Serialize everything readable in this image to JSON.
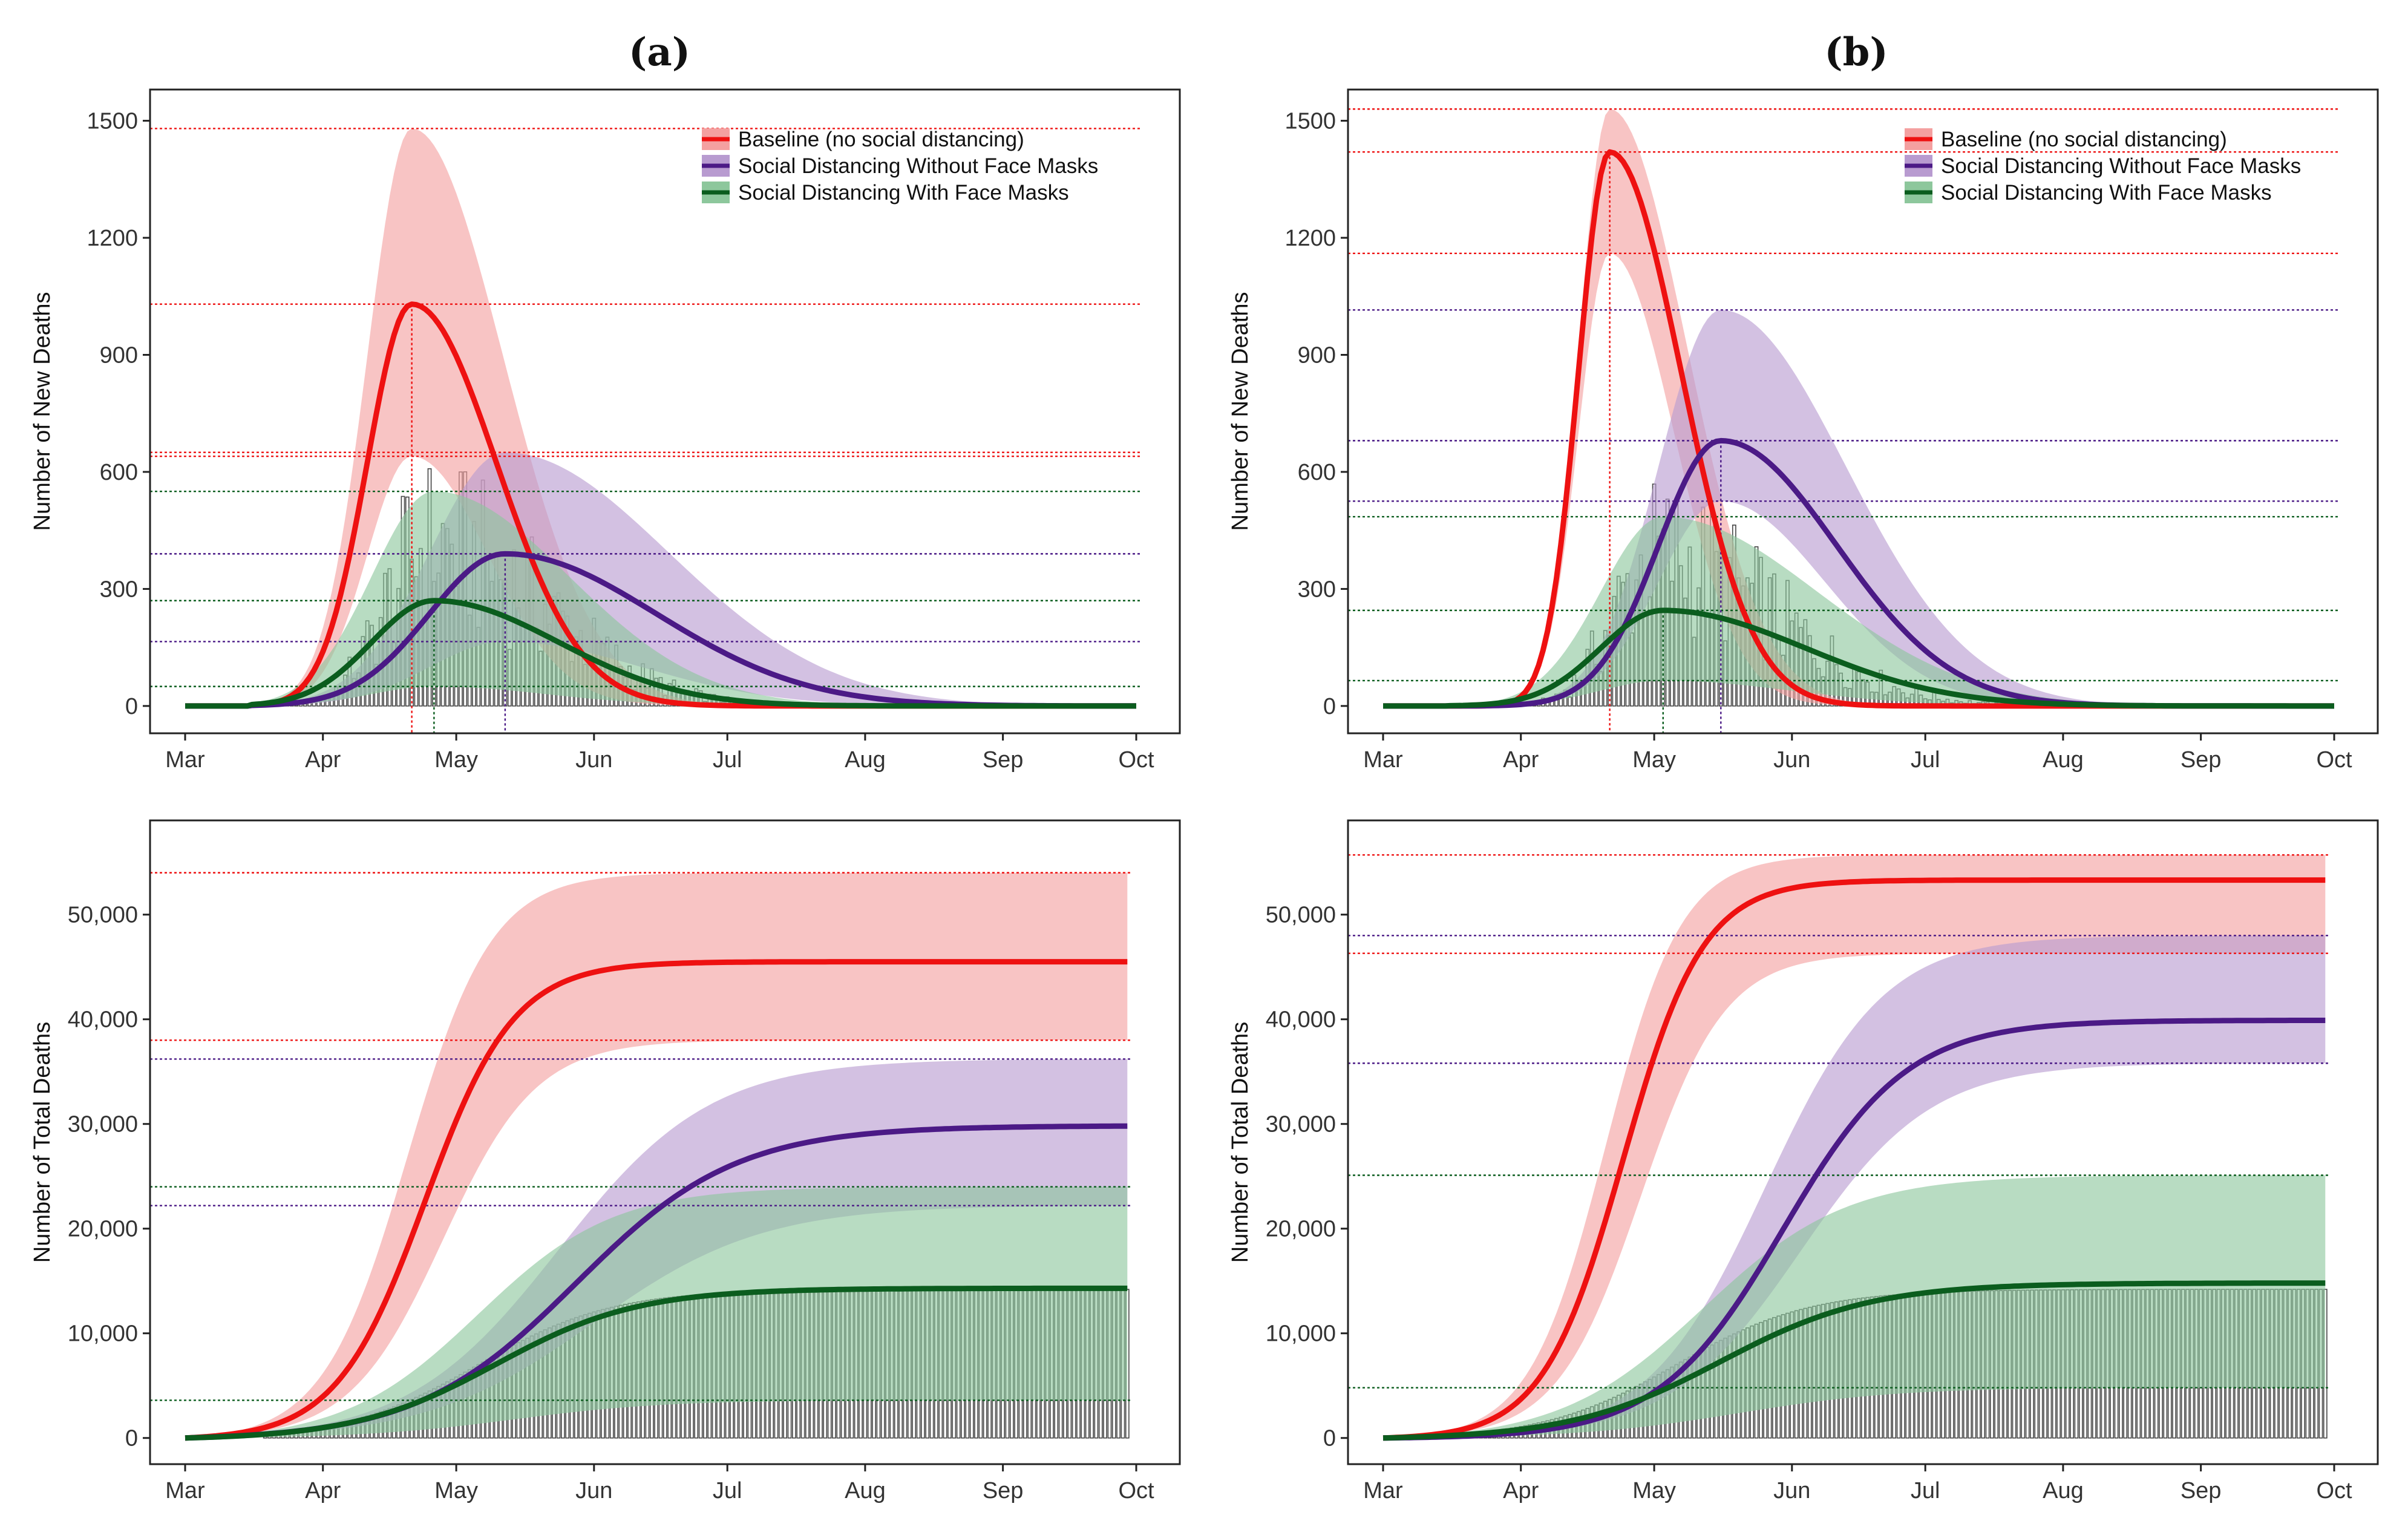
{
  "panel_titles": [
    "(a)",
    "(b)"
  ],
  "colors": {
    "baseline": "#ee1111",
    "baseline_band": "#f4a0a0",
    "no_mask": "#4b1a86",
    "no_mask_band": "#b89bd0",
    "mask": "#0b5d1e",
    "mask_band": "#8dc79c",
    "axis": "#222222",
    "grid_text": "#333333"
  },
  "legend": {
    "baseline": "Baseline (no social distancing)",
    "no_mask": "Social Distancing Without Face Masks",
    "mask": "Social Distancing With Face Masks"
  },
  "chart_data": [
    {
      "id": "a_new",
      "type": "line",
      "title": "(a)",
      "ylabel": "Number of New Deaths",
      "xlabel": "",
      "xlim": [
        0,
        214
      ],
      "ylim": [
        -70,
        1580
      ],
      "x_ticks": [
        {
          "label": "Mar",
          "x": 0
        },
        {
          "label": "Apr",
          "x": 31
        },
        {
          "label": "May",
          "x": 61
        },
        {
          "label": "Jun",
          "x": 92
        },
        {
          "label": "Jul",
          "x": 122
        },
        {
          "label": "Aug",
          "x": 153
        },
        {
          "label": "Sep",
          "x": 184
        },
        {
          "label": "Oct",
          "x": 214
        }
      ],
      "y_ticks": [
        {
          "label": "0",
          "y": 0
        },
        {
          "label": "300",
          "y": 300
        },
        {
          "label": "600",
          "y": 600
        },
        {
          "label": "900",
          "y": 900
        },
        {
          "label": "1200",
          "y": 1200
        },
        {
          "label": "1500",
          "y": 1500
        }
      ],
      "legend": true,
      "bars": "new",
      "bar_peak": 520,
      "series": [
        {
          "key": "baseline",
          "kind": "peak",
          "center": 51,
          "sigma_left": 10,
          "sigma_right": 19,
          "peak": 1030,
          "low_peak": 640,
          "high_peak": 1480,
          "start": 15,
          "end": 214,
          "peak_label": "1030"
        },
        {
          "key": "no_mask",
          "kind": "peak",
          "center": 72,
          "sigma_left": 17,
          "sigma_right": 34,
          "peak": 390,
          "low_peak": 165,
          "high_peak": 650,
          "start": 15,
          "end": 214,
          "peak_label": "390"
        },
        {
          "key": "mask",
          "kind": "peak",
          "center": 56,
          "sigma_left": 14,
          "sigma_right": 28,
          "peak": 270,
          "low_peak": 50,
          "high_peak": 550,
          "start": 15,
          "end": 214,
          "peak_label": "270"
        }
      ],
      "reference_lines": [
        {
          "key": "baseline",
          "y": 1480
        },
        {
          "key": "baseline",
          "y": 1030
        },
        {
          "key": "baseline",
          "y": 650
        },
        {
          "key": "baseline",
          "y": 640
        },
        {
          "key": "no_mask",
          "y": 390
        },
        {
          "key": "no_mask",
          "y": 165
        },
        {
          "key": "mask",
          "y": 550
        },
        {
          "key": "mask",
          "y": 270
        },
        {
          "key": "mask",
          "y": 50
        }
      ],
      "peak_lines": [
        {
          "key": "baseline",
          "x": 51
        },
        {
          "key": "mask",
          "x": 56
        },
        {
          "key": "no_mask",
          "x": 72
        }
      ]
    },
    {
      "id": "b_new",
      "type": "line",
      "title": "(b)",
      "ylabel": "Number of New Deaths",
      "xlabel": "",
      "xlim": [
        0,
        214
      ],
      "ylim": [
        -70,
        1580
      ],
      "x_ticks": [
        {
          "label": "Mar",
          "x": 0
        },
        {
          "label": "Apr",
          "x": 31
        },
        {
          "label": "May",
          "x": 61
        },
        {
          "label": "Jun",
          "x": 92
        },
        {
          "label": "Jul",
          "x": 122
        },
        {
          "label": "Aug",
          "x": 153
        },
        {
          "label": "Sep",
          "x": 184
        },
        {
          "label": "Oct",
          "x": 214
        }
      ],
      "y_ticks": [
        {
          "label": "0",
          "y": 0
        },
        {
          "label": "300",
          "y": 300
        },
        {
          "label": "600",
          "y": 600
        },
        {
          "label": "900",
          "y": 900
        },
        {
          "label": "1200",
          "y": 1200
        },
        {
          "label": "1500",
          "y": 1500
        }
      ],
      "legend": true,
      "bars": "new",
      "bar_peak": 480,
      "series": [
        {
          "key": "baseline",
          "kind": "peak",
          "center": 51,
          "sigma_left": 7,
          "sigma_right": 16,
          "peak": 1420,
          "low_peak": 1160,
          "high_peak": 1530,
          "start": 15,
          "end": 214,
          "peak_label": "1420"
        },
        {
          "key": "no_mask",
          "kind": "peak",
          "center": 76,
          "sigma_left": 14,
          "sigma_right": 26,
          "peak": 680,
          "low_peak": 525,
          "high_peak": 1015,
          "start": 15,
          "end": 214,
          "peak_label": "680"
        },
        {
          "key": "mask",
          "kind": "peak",
          "center": 63,
          "sigma_left": 14,
          "sigma_right": 32,
          "peak": 245,
          "low_peak": 65,
          "high_peak": 485,
          "start": 15,
          "end": 214,
          "peak_label": "245"
        }
      ],
      "reference_lines": [
        {
          "key": "baseline",
          "y": 1530
        },
        {
          "key": "baseline",
          "y": 1420
        },
        {
          "key": "baseline",
          "y": 1160
        },
        {
          "key": "no_mask",
          "y": 1015
        },
        {
          "key": "no_mask",
          "y": 680
        },
        {
          "key": "no_mask",
          "y": 525
        },
        {
          "key": "mask",
          "y": 485
        },
        {
          "key": "mask",
          "y": 245
        },
        {
          "key": "mask",
          "y": 65
        }
      ],
      "peak_lines": [
        {
          "key": "baseline",
          "x": 51
        },
        {
          "key": "mask",
          "x": 63
        },
        {
          "key": "no_mask",
          "x": 76
        }
      ]
    },
    {
      "id": "a_total",
      "type": "line",
      "title": "",
      "ylabel": "Number of Total Deaths",
      "xlabel": "",
      "xlim": [
        0,
        214
      ],
      "ylim": [
        -2500,
        59000
      ],
      "x_ticks": [
        {
          "label": "Mar",
          "x": 0
        },
        {
          "label": "Apr",
          "x": 31
        },
        {
          "label": "May",
          "x": 61
        },
        {
          "label": "Jun",
          "x": 92
        },
        {
          "label": "Jul",
          "x": 122
        },
        {
          "label": "Aug",
          "x": 153
        },
        {
          "label": "Sep",
          "x": 184
        },
        {
          "label": "Oct",
          "x": 214
        }
      ],
      "y_ticks": [
        {
          "label": "0",
          "y": 0
        },
        {
          "label": "10,000",
          "y": 10000
        },
        {
          "label": "20,000",
          "y": 20000
        },
        {
          "label": "30,000",
          "y": 30000
        },
        {
          "label": "40,000",
          "y": 40000
        },
        {
          "label": "50,000",
          "y": 50000
        }
      ],
      "legend": false,
      "bars": "cumulative",
      "bar_final": 14200,
      "series": [
        {
          "key": "baseline",
          "kind": "cumulative",
          "mid": 54,
          "scale": 10,
          "final": 45500,
          "low_final": 38000,
          "high_final": 54000,
          "start": 0,
          "end": 212,
          "final_label": "45,500"
        },
        {
          "key": "no_mask",
          "kind": "cumulative",
          "mid": 88,
          "scale": 18,
          "final": 29800,
          "low_final": 22200,
          "high_final": 36200,
          "start": 0,
          "end": 212,
          "final_label": "29,800"
        },
        {
          "key": "mask",
          "kind": "cumulative",
          "mid": 70,
          "scale": 16,
          "final": 14300,
          "low_final": 3600,
          "high_final": 24000,
          "start": 0,
          "end": 212,
          "final_label": "14,300"
        }
      ],
      "reference_lines": [
        {
          "key": "baseline",
          "y": 54000
        },
        {
          "key": "baseline",
          "y": 38000
        },
        {
          "key": "no_mask",
          "y": 36200
        },
        {
          "key": "no_mask",
          "y": 22200
        },
        {
          "key": "mask",
          "y": 24000
        },
        {
          "key": "mask",
          "y": 3600
        }
      ],
      "peak_lines": []
    },
    {
      "id": "b_total",
      "type": "line",
      "title": "",
      "ylabel": "Number of Total Deaths",
      "xlabel": "",
      "xlim": [
        0,
        214
      ],
      "ylim": [
        -2500,
        59000
      ],
      "x_ticks": [
        {
          "label": "Mar",
          "x": 0
        },
        {
          "label": "Apr",
          "x": 31
        },
        {
          "label": "May",
          "x": 61
        },
        {
          "label": "Jun",
          "x": 92
        },
        {
          "label": "Jul",
          "x": 122
        },
        {
          "label": "Aug",
          "x": 153
        },
        {
          "label": "Sep",
          "x": 184
        },
        {
          "label": "Oct",
          "x": 214
        }
      ],
      "y_ticks": [
        {
          "label": "0",
          "y": 0
        },
        {
          "label": "10,000",
          "y": 10000
        },
        {
          "label": "20,000",
          "y": 20000
        },
        {
          "label": "30,000",
          "y": 30000
        },
        {
          "label": "40,000",
          "y": 40000
        },
        {
          "label": "50,000",
          "y": 50000
        }
      ],
      "legend": false,
      "bars": "cumulative",
      "bar_final": 14200,
      "series": [
        {
          "key": "baseline",
          "kind": "cumulative",
          "mid": 54,
          "scale": 9,
          "final": 53300,
          "low_final": 46300,
          "high_final": 55700,
          "start": 0,
          "end": 212,
          "final_label": "53,300"
        },
        {
          "key": "no_mask",
          "kind": "cumulative",
          "mid": 90,
          "scale": 14,
          "final": 39900,
          "low_final": 35800,
          "high_final": 48000,
          "start": 0,
          "end": 212,
          "final_label": "39,900"
        },
        {
          "key": "mask",
          "kind": "cumulative",
          "mid": 76,
          "scale": 17,
          "final": 14800,
          "low_final": 4800,
          "high_final": 25100,
          "start": 0,
          "end": 212,
          "final_label": "14,800"
        }
      ],
      "reference_lines": [
        {
          "key": "baseline",
          "y": 55700
        },
        {
          "key": "baseline",
          "y": 46300
        },
        {
          "key": "no_mask",
          "y": 48000
        },
        {
          "key": "no_mask",
          "y": 35800
        },
        {
          "key": "mask",
          "y": 25100
        },
        {
          "key": "mask",
          "y": 4800
        }
      ],
      "peak_lines": []
    }
  ]
}
